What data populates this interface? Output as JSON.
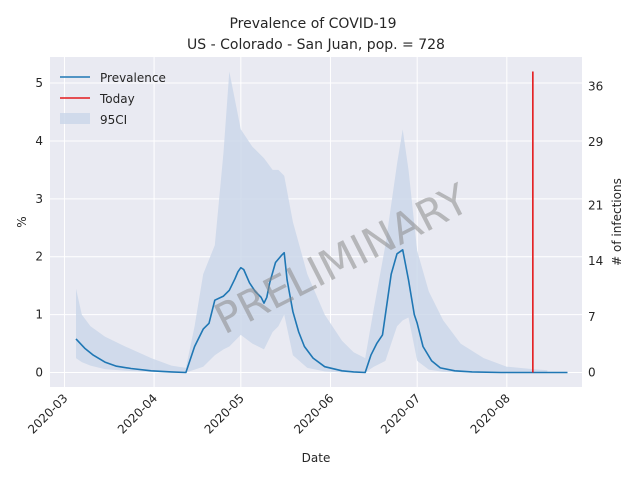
{
  "chart_data": {
    "type": "line",
    "title": "Prevalence of COVID-19",
    "subtitle": "US - Colorado - San Juan, pop. = 728",
    "xlabel": "Date",
    "ylabel": "%",
    "y2label": "# of infections",
    "watermark": "PRELIMINARY",
    "xlim": [
      "2020-02-25",
      "2020-08-27"
    ],
    "ylim": [
      -0.25,
      5.45
    ],
    "y2lim": [
      -1.82,
      39.68
    ],
    "grid": true,
    "legend_position": "top-left",
    "x_ticks": [
      "2020-03-01",
      "2020-04-01",
      "2020-05-01",
      "2020-06-01",
      "2020-07-01",
      "2020-08-01"
    ],
    "x_tick_labels": [
      "2020-03",
      "2020-04",
      "2020-05",
      "2020-06",
      "2020-07",
      "2020-08"
    ],
    "y_ticks": [
      0,
      1,
      2,
      3,
      4,
      5
    ],
    "y_tick_labels": [
      "0",
      "1",
      "2",
      "3",
      "4",
      "5"
    ],
    "y2_ticks": [
      0,
      7,
      14,
      21,
      29,
      36
    ],
    "y2_tick_labels": [
      "0",
      "7",
      "14",
      "21",
      "29",
      "36"
    ],
    "colors": {
      "prevalence": "#1f77b4",
      "today": "#e41a1c",
      "ci_band": "#c9d6e8",
      "plot_background": "#e9eaf2",
      "grid": "#ffffff"
    },
    "series": [
      {
        "name": "Prevalence",
        "kind": "line",
        "x": [
          "2020-03-05",
          "2020-03-08",
          "2020-03-11",
          "2020-03-15",
          "2020-03-19",
          "2020-03-24",
          "2020-03-31",
          "2020-04-07",
          "2020-04-12",
          "2020-04-15",
          "2020-04-18",
          "2020-04-20",
          "2020-04-22",
          "2020-04-25",
          "2020-04-27",
          "2020-04-29",
          "2020-04-30",
          "2020-05-01",
          "2020-05-02",
          "2020-05-04",
          "2020-05-06",
          "2020-05-08",
          "2020-05-09",
          "2020-05-10",
          "2020-05-11",
          "2020-05-13",
          "2020-05-15",
          "2020-05-16",
          "2020-05-17",
          "2020-05-19",
          "2020-05-21",
          "2020-05-23",
          "2020-05-26",
          "2020-05-30",
          "2020-06-05",
          "2020-06-09",
          "2020-06-13",
          "2020-06-15",
          "2020-06-17",
          "2020-06-19",
          "2020-06-22",
          "2020-06-24",
          "2020-06-26",
          "2020-06-28",
          "2020-06-29",
          "2020-06-30",
          "2020-07-01",
          "2020-07-03",
          "2020-07-06",
          "2020-07-09",
          "2020-07-14",
          "2020-07-20",
          "2020-07-30",
          "2020-08-10",
          "2020-08-22"
        ],
        "y": [
          0.58,
          0.42,
          0.3,
          0.18,
          0.11,
          0.07,
          0.03,
          0.01,
          0.0,
          0.45,
          0.75,
          0.85,
          1.25,
          1.32,
          1.42,
          1.62,
          1.74,
          1.81,
          1.78,
          1.55,
          1.4,
          1.3,
          1.2,
          1.3,
          1.55,
          1.9,
          2.02,
          2.07,
          1.6,
          1.05,
          0.7,
          0.45,
          0.25,
          0.1,
          0.03,
          0.01,
          0.0,
          0.3,
          0.5,
          0.65,
          1.7,
          2.05,
          2.12,
          1.6,
          1.3,
          1.0,
          0.85,
          0.45,
          0.2,
          0.08,
          0.03,
          0.01,
          0.0,
          0.0,
          0.0
        ]
      },
      {
        "name": "Today",
        "kind": "vline",
        "x": "2020-08-10",
        "y_range": [
          0.0,
          5.2
        ]
      },
      {
        "name": "95CI",
        "kind": "band",
        "x": [
          "2020-03-05",
          "2020-03-07",
          "2020-03-10",
          "2020-03-15",
          "2020-03-22",
          "2020-03-31",
          "2020-04-07",
          "2020-04-12",
          "2020-04-15",
          "2020-04-18",
          "2020-04-22",
          "2020-04-25",
          "2020-04-27",
          "2020-05-01",
          "2020-05-05",
          "2020-05-09",
          "2020-05-12",
          "2020-05-14",
          "2020-05-16",
          "2020-05-19",
          "2020-05-24",
          "2020-05-30",
          "2020-06-05",
          "2020-06-09",
          "2020-06-13",
          "2020-06-16",
          "2020-06-20",
          "2020-06-24",
          "2020-06-26",
          "2020-06-28",
          "2020-07-01",
          "2020-07-05",
          "2020-07-10",
          "2020-07-16",
          "2020-07-24",
          "2020-08-01",
          "2020-08-10",
          "2020-08-15"
        ],
        "lower": [
          0.25,
          0.18,
          0.12,
          0.06,
          0.03,
          0.01,
          0.0,
          0.0,
          0.05,
          0.1,
          0.3,
          0.4,
          0.45,
          0.65,
          0.5,
          0.4,
          0.7,
          0.8,
          1.0,
          0.3,
          0.08,
          0.02,
          0.0,
          0.0,
          0.0,
          0.1,
          0.2,
          0.8,
          0.9,
          0.95,
          0.2,
          0.05,
          0.01,
          0.0,
          0.0,
          0.0,
          0.0,
          0.0
        ],
        "upper": [
          1.45,
          1.0,
          0.8,
          0.62,
          0.45,
          0.25,
          0.12,
          0.08,
          0.8,
          1.7,
          2.2,
          3.8,
          5.2,
          4.2,
          3.9,
          3.7,
          3.5,
          3.5,
          3.4,
          2.6,
          1.7,
          1.0,
          0.55,
          0.35,
          0.25,
          1.1,
          2.2,
          3.6,
          4.2,
          3.5,
          2.1,
          1.4,
          0.9,
          0.5,
          0.25,
          0.1,
          0.06,
          0.04
        ]
      }
    ]
  }
}
